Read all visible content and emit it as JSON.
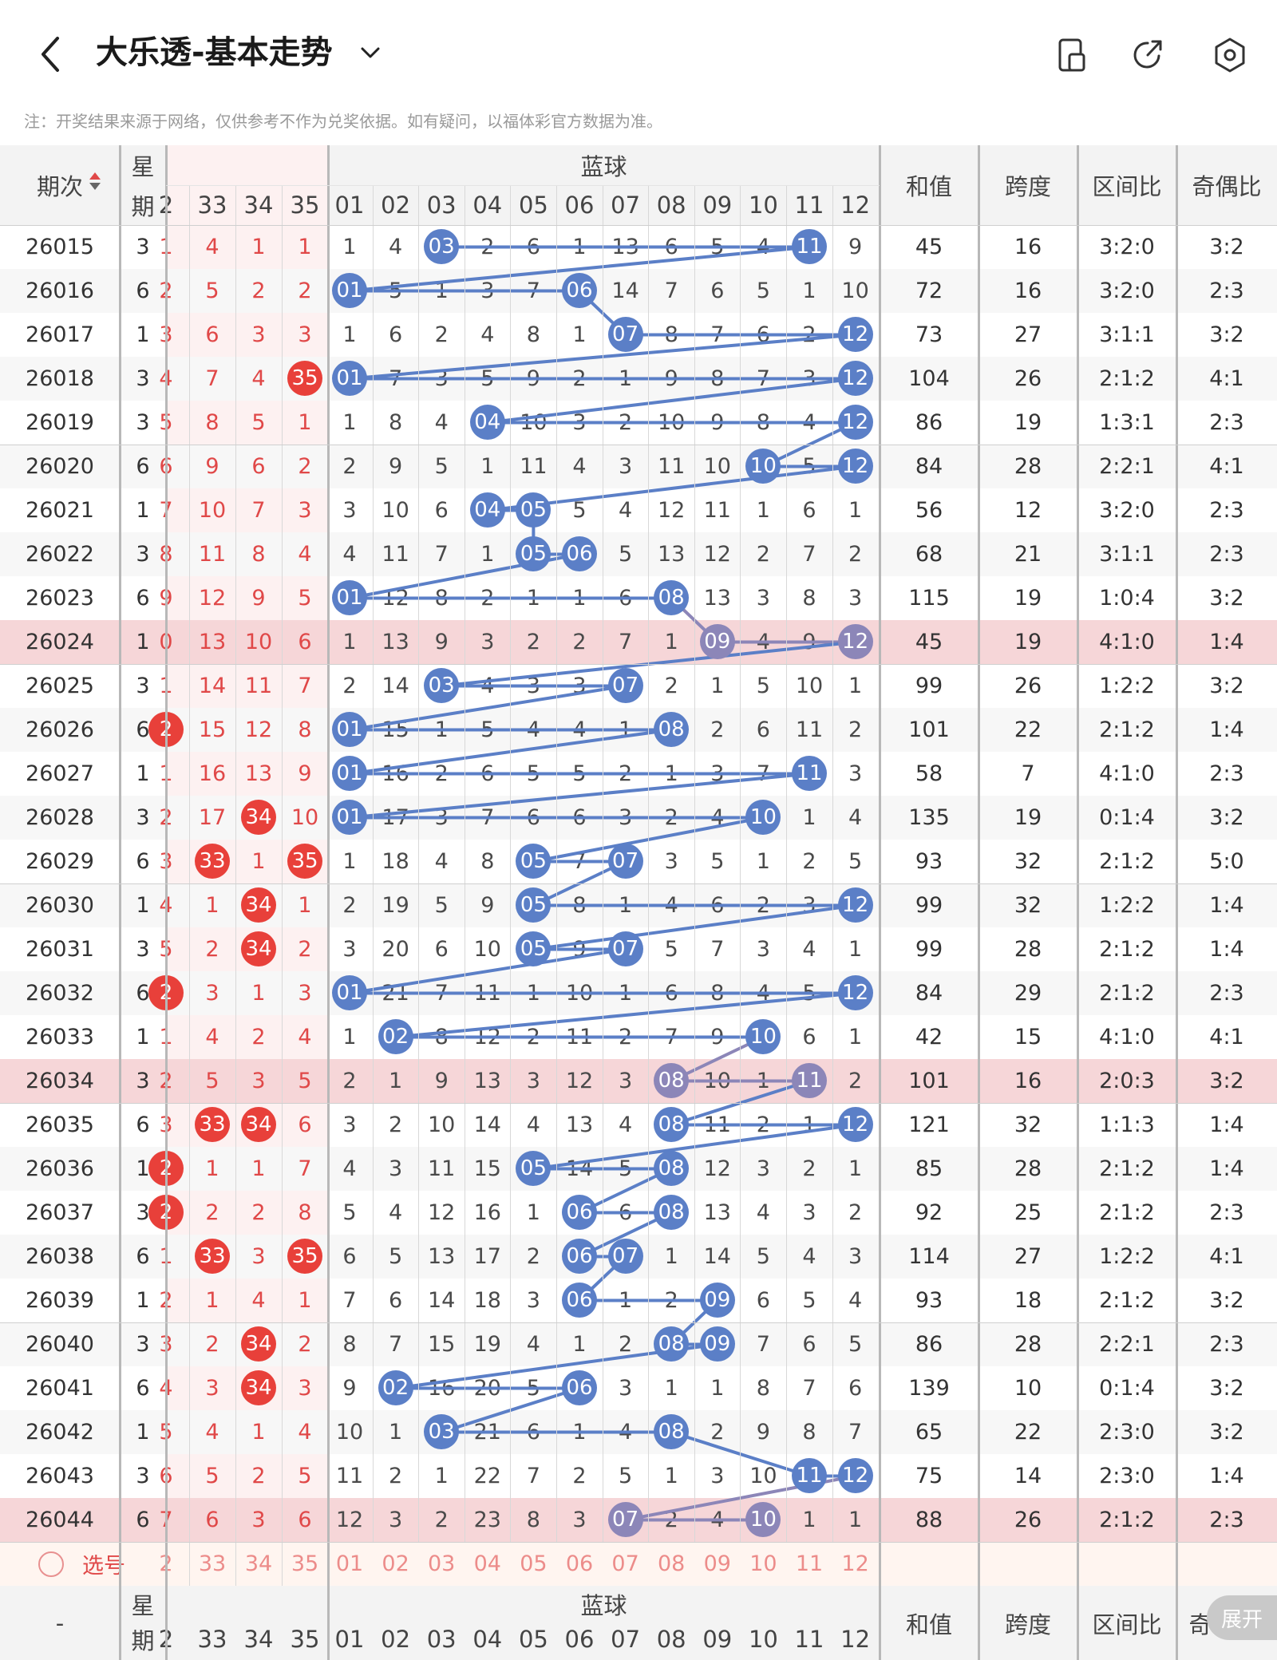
{
  "header": {
    "title": "大乐透-基本走势",
    "note": "注：开奖结果来源于网络，仅供参考不作为兑奖依据。如有疑问，以福体彩官方数据为准。",
    "icons": [
      "back-icon",
      "chevron-down-icon",
      "phone-icon",
      "share-icon",
      "settings-icon"
    ]
  },
  "table": {
    "col_issue": "期次",
    "col_week": "星期",
    "blue_group": "蓝球",
    "red_cols": [
      "2",
      "33",
      "34",
      "35"
    ],
    "blue_cols": [
      "01",
      "02",
      "03",
      "04",
      "05",
      "06",
      "07",
      "08",
      "09",
      "10",
      "11",
      "12"
    ],
    "col_sum": "和值",
    "col_span": "跨度",
    "col_zone": "区间比",
    "col_oddeven": "奇偶比",
    "pick_label": "选号",
    "bottom_first": "-",
    "bottom_last": "奇",
    "expand_button": "展开",
    "rows": [
      {
        "issue": "26015",
        "week": "3",
        "red": [
          "1",
          "4",
          "1",
          "1"
        ],
        "redball": [],
        "blue": [
          "1",
          "4",
          "03",
          "2",
          "6",
          "1",
          "13",
          "6",
          "5",
          "4",
          "11",
          "9"
        ],
        "hits": [
          3,
          11
        ],
        "sum": "45",
        "span": "16",
        "zone": "3:2:0",
        "oe": "3:2",
        "hl": false
      },
      {
        "issue": "26016",
        "week": "6",
        "red": [
          "2",
          "5",
          "2",
          "2"
        ],
        "redball": [],
        "blue": [
          "01",
          "5",
          "1",
          "3",
          "7",
          "06",
          "14",
          "7",
          "6",
          "5",
          "1",
          "10"
        ],
        "hits": [
          1,
          6
        ],
        "sum": "72",
        "span": "16",
        "zone": "3:2:0",
        "oe": "2:3",
        "hl": false
      },
      {
        "issue": "26017",
        "week": "1",
        "red": [
          "3",
          "6",
          "3",
          "3"
        ],
        "redball": [],
        "blue": [
          "1",
          "6",
          "2",
          "4",
          "8",
          "1",
          "07",
          "8",
          "7",
          "6",
          "2",
          "12"
        ],
        "hits": [
          7,
          12
        ],
        "sum": "73",
        "span": "27",
        "zone": "3:1:1",
        "oe": "3:2",
        "hl": false
      },
      {
        "issue": "26018",
        "week": "3",
        "red": [
          "4",
          "7",
          "4",
          "35"
        ],
        "redball": [
          3
        ],
        "blue": [
          "01",
          "7",
          "3",
          "5",
          "9",
          "2",
          "1",
          "9",
          "8",
          "7",
          "3",
          "12"
        ],
        "hits": [
          1,
          12
        ],
        "sum": "104",
        "span": "26",
        "zone": "2:1:2",
        "oe": "4:1",
        "hl": false
      },
      {
        "issue": "26019",
        "week": "3",
        "red": [
          "5",
          "8",
          "5",
          "1"
        ],
        "redball": [],
        "blue": [
          "1",
          "8",
          "4",
          "04",
          "10",
          "3",
          "2",
          "10",
          "9",
          "8",
          "4",
          "12"
        ],
        "hits": [
          4,
          12
        ],
        "sum": "86",
        "span": "19",
        "zone": "1:3:1",
        "oe": "2:3",
        "hl": false
      },
      {
        "issue": "26020",
        "week": "6",
        "red": [
          "6",
          "9",
          "6",
          "2"
        ],
        "redball": [],
        "blue": [
          "2",
          "9",
          "5",
          "1",
          "11",
          "4",
          "3",
          "11",
          "10",
          "10",
          "5",
          "12"
        ],
        "hits": [
          10,
          12
        ],
        "sum": "84",
        "span": "28",
        "zone": "2:2:1",
        "oe": "4:1",
        "hl": false
      },
      {
        "issue": "26021",
        "week": "1",
        "red": [
          "7",
          "10",
          "7",
          "3"
        ],
        "redball": [],
        "blue": [
          "3",
          "10",
          "6",
          "04",
          "05",
          "5",
          "4",
          "12",
          "11",
          "1",
          "6",
          "1"
        ],
        "hits": [
          4,
          5
        ],
        "sum": "56",
        "span": "12",
        "zone": "3:2:0",
        "oe": "2:3",
        "hl": false
      },
      {
        "issue": "26022",
        "week": "3",
        "red": [
          "8",
          "11",
          "8",
          "4"
        ],
        "redball": [],
        "blue": [
          "4",
          "11",
          "7",
          "1",
          "05",
          "06",
          "5",
          "13",
          "12",
          "2",
          "7",
          "2"
        ],
        "hits": [
          5,
          6
        ],
        "sum": "68",
        "span": "21",
        "zone": "3:1:1",
        "oe": "2:3",
        "hl": false
      },
      {
        "issue": "26023",
        "week": "6",
        "red": [
          "9",
          "12",
          "9",
          "5"
        ],
        "redball": [],
        "blue": [
          "01",
          "12",
          "8",
          "2",
          "1",
          "1",
          "6",
          "08",
          "13",
          "3",
          "8",
          "3"
        ],
        "hits": [
          1,
          8
        ],
        "sum": "115",
        "span": "19",
        "zone": "1:0:4",
        "oe": "3:2",
        "hl": false
      },
      {
        "issue": "26024",
        "week": "1",
        "red": [
          "0",
          "13",
          "10",
          "6"
        ],
        "redball": [],
        "blue": [
          "1",
          "13",
          "9",
          "3",
          "2",
          "2",
          "7",
          "1",
          "09",
          "4",
          "9",
          "12"
        ],
        "hits": [
          9,
          12
        ],
        "sum": "45",
        "span": "19",
        "zone": "4:1:0",
        "oe": "1:4",
        "hl": true
      },
      {
        "issue": "26025",
        "week": "3",
        "red": [
          "1",
          "14",
          "11",
          "7"
        ],
        "redball": [],
        "blue": [
          "2",
          "14",
          "03",
          "4",
          "3",
          "3",
          "07",
          "2",
          "1",
          "5",
          "10",
          "1"
        ],
        "hits": [
          3,
          7
        ],
        "sum": "99",
        "span": "26",
        "zone": "1:2:2",
        "oe": "3:2",
        "hl": false
      },
      {
        "issue": "26026",
        "week": "6",
        "red": [
          "2",
          "15",
          "12",
          "8"
        ],
        "redball": [
          0
        ],
        "blue": [
          "01",
          "15",
          "1",
          "5",
          "4",
          "4",
          "1",
          "08",
          "2",
          "6",
          "11",
          "2"
        ],
        "hits": [
          1,
          8
        ],
        "sum": "101",
        "span": "22",
        "zone": "2:1:2",
        "oe": "1:4",
        "hl": false
      },
      {
        "issue": "26027",
        "week": "1",
        "red": [
          "1",
          "16",
          "13",
          "9"
        ],
        "redball": [],
        "blue": [
          "01",
          "16",
          "2",
          "6",
          "5",
          "5",
          "2",
          "1",
          "3",
          "7",
          "11",
          "3"
        ],
        "hits": [
          1,
          11
        ],
        "sum": "58",
        "span": "7",
        "zone": "4:1:0",
        "oe": "2:3",
        "hl": false
      },
      {
        "issue": "26028",
        "week": "3",
        "red": [
          "2",
          "17",
          "34",
          "10"
        ],
        "redball": [
          2
        ],
        "blue": [
          "01",
          "17",
          "3",
          "7",
          "6",
          "6",
          "3",
          "2",
          "4",
          "10",
          "1",
          "4"
        ],
        "hits": [
          1,
          10
        ],
        "sum": "135",
        "span": "19",
        "zone": "0:1:4",
        "oe": "3:2",
        "hl": false
      },
      {
        "issue": "26029",
        "week": "6",
        "red": [
          "3",
          "33",
          "1",
          "35"
        ],
        "redball": [
          1,
          3
        ],
        "blue": [
          "1",
          "18",
          "4",
          "8",
          "05",
          "7",
          "07",
          "3",
          "5",
          "1",
          "2",
          "5"
        ],
        "hits": [
          5,
          7
        ],
        "sum": "93",
        "span": "32",
        "zone": "2:1:2",
        "oe": "5:0",
        "hl": false
      },
      {
        "issue": "26030",
        "week": "1",
        "red": [
          "4",
          "1",
          "34",
          "1"
        ],
        "redball": [
          2
        ],
        "blue": [
          "2",
          "19",
          "5",
          "9",
          "05",
          "8",
          "1",
          "4",
          "6",
          "2",
          "3",
          "12"
        ],
        "hits": [
          5,
          12
        ],
        "sum": "99",
        "span": "32",
        "zone": "1:2:2",
        "oe": "1:4",
        "hl": false
      },
      {
        "issue": "26031",
        "week": "3",
        "red": [
          "5",
          "2",
          "34",
          "2"
        ],
        "redball": [
          2
        ],
        "blue": [
          "3",
          "20",
          "6",
          "10",
          "05",
          "9",
          "07",
          "5",
          "7",
          "3",
          "4",
          "1"
        ],
        "hits": [
          5,
          7
        ],
        "sum": "99",
        "span": "28",
        "zone": "2:1:2",
        "oe": "1:4",
        "hl": false
      },
      {
        "issue": "26032",
        "week": "6",
        "red": [
          "2",
          "3",
          "1",
          "3"
        ],
        "redball": [
          0
        ],
        "blue": [
          "01",
          "21",
          "7",
          "11",
          "1",
          "10",
          "1",
          "6",
          "8",
          "4",
          "5",
          "12"
        ],
        "hits": [
          1,
          12
        ],
        "sum": "84",
        "span": "29",
        "zone": "2:1:2",
        "oe": "2:3",
        "hl": false
      },
      {
        "issue": "26033",
        "week": "1",
        "red": [
          "1",
          "4",
          "2",
          "4"
        ],
        "redball": [],
        "blue": [
          "1",
          "02",
          "8",
          "12",
          "2",
          "11",
          "2",
          "7",
          "9",
          "10",
          "6",
          "1"
        ],
        "hits": [
          2,
          10
        ],
        "sum": "42",
        "span": "15",
        "zone": "4:1:0",
        "oe": "4:1",
        "hl": false
      },
      {
        "issue": "26034",
        "week": "3",
        "red": [
          "2",
          "5",
          "3",
          "5"
        ],
        "redball": [],
        "blue": [
          "2",
          "1",
          "9",
          "13",
          "3",
          "12",
          "3",
          "08",
          "10",
          "1",
          "11",
          "2"
        ],
        "hits": [
          8,
          11
        ],
        "sum": "101",
        "span": "16",
        "zone": "2:0:3",
        "oe": "3:2",
        "hl": true
      },
      {
        "issue": "26035",
        "week": "6",
        "red": [
          "3",
          "33",
          "34",
          "6"
        ],
        "redball": [
          1,
          2
        ],
        "blue": [
          "3",
          "2",
          "10",
          "14",
          "4",
          "13",
          "4",
          "08",
          "11",
          "2",
          "1",
          "12"
        ],
        "hits": [
          8,
          12
        ],
        "sum": "121",
        "span": "32",
        "zone": "1:1:3",
        "oe": "1:4",
        "hl": false
      },
      {
        "issue": "26036",
        "week": "1",
        "red": [
          "2",
          "1",
          "1",
          "7"
        ],
        "redball": [
          0
        ],
        "blue": [
          "4",
          "3",
          "11",
          "15",
          "05",
          "14",
          "5",
          "08",
          "12",
          "3",
          "2",
          "1"
        ],
        "hits": [
          5,
          8
        ],
        "sum": "85",
        "span": "28",
        "zone": "2:1:2",
        "oe": "1:4",
        "hl": false
      },
      {
        "issue": "26037",
        "week": "3",
        "red": [
          "2",
          "2",
          "2",
          "8"
        ],
        "redball": [
          0
        ],
        "blue": [
          "5",
          "4",
          "12",
          "16",
          "1",
          "06",
          "6",
          "08",
          "13",
          "4",
          "3",
          "2"
        ],
        "hits": [
          6,
          8
        ],
        "sum": "92",
        "span": "25",
        "zone": "2:1:2",
        "oe": "2:3",
        "hl": false
      },
      {
        "issue": "26038",
        "week": "6",
        "red": [
          "1",
          "33",
          "3",
          "35"
        ],
        "redball": [
          1,
          3
        ],
        "blue": [
          "6",
          "5",
          "13",
          "17",
          "2",
          "06",
          "07",
          "1",
          "14",
          "5",
          "4",
          "3"
        ],
        "hits": [
          6,
          7
        ],
        "sum": "114",
        "span": "27",
        "zone": "1:2:2",
        "oe": "4:1",
        "hl": false
      },
      {
        "issue": "26039",
        "week": "1",
        "red": [
          "2",
          "1",
          "4",
          "1"
        ],
        "redball": [],
        "blue": [
          "7",
          "6",
          "14",
          "18",
          "3",
          "06",
          "1",
          "2",
          "09",
          "6",
          "5",
          "4"
        ],
        "hits": [
          6,
          9
        ],
        "sum": "93",
        "span": "18",
        "zone": "2:1:2",
        "oe": "3:2",
        "hl": false
      },
      {
        "issue": "26040",
        "week": "3",
        "red": [
          "3",
          "2",
          "34",
          "2"
        ],
        "redball": [
          2
        ],
        "blue": [
          "8",
          "7",
          "15",
          "19",
          "4",
          "1",
          "2",
          "08",
          "09",
          "7",
          "6",
          "5"
        ],
        "hits": [
          8,
          9
        ],
        "sum": "86",
        "span": "28",
        "zone": "2:2:1",
        "oe": "2:3",
        "hl": false
      },
      {
        "issue": "26041",
        "week": "6",
        "red": [
          "4",
          "3",
          "34",
          "3"
        ],
        "redball": [
          2
        ],
        "blue": [
          "9",
          "02",
          "16",
          "20",
          "5",
          "06",
          "3",
          "1",
          "1",
          "8",
          "7",
          "6"
        ],
        "hits": [
          2,
          6
        ],
        "sum": "139",
        "span": "10",
        "zone": "0:1:4",
        "oe": "3:2",
        "hl": false
      },
      {
        "issue": "26042",
        "week": "1",
        "red": [
          "5",
          "4",
          "1",
          "4"
        ],
        "redball": [],
        "blue": [
          "10",
          "1",
          "03",
          "21",
          "6",
          "1",
          "4",
          "08",
          "2",
          "9",
          "8",
          "7"
        ],
        "hits": [
          3,
          8
        ],
        "sum": "65",
        "span": "22",
        "zone": "2:3:0",
        "oe": "3:2",
        "hl": false
      },
      {
        "issue": "26043",
        "week": "3",
        "red": [
          "6",
          "5",
          "2",
          "5"
        ],
        "redball": [],
        "blue": [
          "11",
          "2",
          "1",
          "22",
          "7",
          "2",
          "5",
          "1",
          "3",
          "10",
          "11",
          "12"
        ],
        "hits": [
          11,
          12
        ],
        "sum": "75",
        "span": "14",
        "zone": "2:3:0",
        "oe": "1:4",
        "hl": false
      },
      {
        "issue": "26044",
        "week": "6",
        "red": [
          "7",
          "6",
          "3",
          "6"
        ],
        "redball": [],
        "blue": [
          "12",
          "3",
          "2",
          "23",
          "8",
          "3",
          "07",
          "2",
          "4",
          "10",
          "1",
          "1"
        ],
        "hits": [
          7,
          10
        ],
        "sum": "88",
        "span": "26",
        "zone": "2:1:2",
        "oe": "2:3",
        "hl": true
      }
    ]
  },
  "colors": {
    "blue_ball": "#5b7fc7",
    "purple_ball": "#8c86b8",
    "red_ball": "#e8403a",
    "red_text": "#e04848",
    "highlight_row": "#f6d6d8",
    "header_bg": "#f3f3f3"
  }
}
